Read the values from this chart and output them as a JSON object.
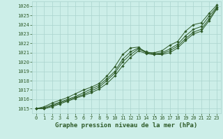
{
  "title": "Graphe pression niveau de la mer (hPa)",
  "bg_color": "#cceee8",
  "grid_color": "#aad4ce",
  "line_color": "#2d5a27",
  "xlim": [
    -0.5,
    23.5
  ],
  "ylim": [
    1014.5,
    1026.5
  ],
  "yticks": [
    1015,
    1016,
    1017,
    1018,
    1019,
    1020,
    1021,
    1022,
    1023,
    1024,
    1025,
    1026
  ],
  "xticks": [
    0,
    1,
    2,
    3,
    4,
    5,
    6,
    7,
    8,
    9,
    10,
    11,
    12,
    13,
    14,
    15,
    16,
    17,
    18,
    19,
    20,
    21,
    22,
    23
  ],
  "series": [
    [
      1015.0,
      1015.2,
      1015.6,
      1015.9,
      1016.2,
      1016.6,
      1017.0,
      1017.3,
      1017.7,
      1018.5,
      1019.5,
      1020.8,
      1021.5,
      1021.6,
      1021.0,
      1021.0,
      1021.2,
      1021.8,
      1022.2,
      1023.3,
      1024.0,
      1024.2,
      1025.2,
      1026.1
    ],
    [
      1015.0,
      1015.1,
      1015.4,
      1015.7,
      1016.0,
      1016.3,
      1016.7,
      1017.1,
      1017.5,
      1018.2,
      1019.0,
      1020.3,
      1021.1,
      1021.5,
      1021.1,
      1020.9,
      1021.0,
      1021.4,
      1021.9,
      1022.8,
      1023.5,
      1023.8,
      1024.9,
      1025.9
    ],
    [
      1015.0,
      1015.0,
      1015.3,
      1015.6,
      1015.9,
      1016.2,
      1016.5,
      1016.9,
      1017.3,
      1018.0,
      1018.8,
      1020.0,
      1020.8,
      1021.4,
      1021.0,
      1020.8,
      1020.9,
      1021.2,
      1021.7,
      1022.5,
      1023.2,
      1023.5,
      1024.6,
      1025.8
    ],
    [
      1015.0,
      1015.0,
      1015.2,
      1015.5,
      1015.8,
      1016.1,
      1016.4,
      1016.7,
      1017.1,
      1017.7,
      1018.5,
      1019.6,
      1020.5,
      1021.2,
      1020.9,
      1020.8,
      1020.8,
      1021.0,
      1021.5,
      1022.3,
      1023.0,
      1023.3,
      1024.4,
      1025.7
    ]
  ],
  "marker": "D",
  "marker_size": 1.8,
  "linewidth": 0.7,
  "title_fontsize": 6.5,
  "tick_fontsize": 5.0
}
